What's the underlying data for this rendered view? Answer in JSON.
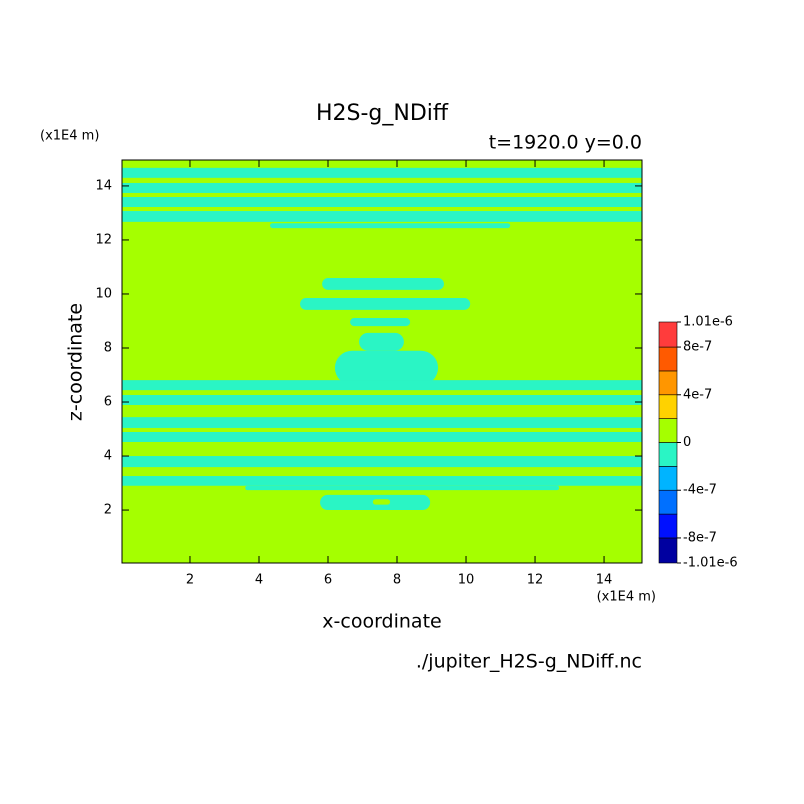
{
  "chart_data": {
    "type": "contour",
    "title": "H2S-g_NDiff",
    "subtitle": "t=1920.0 y=0.0",
    "x_label": "x-coordinate",
    "y_label": "z-coordinate",
    "x_unit": "(x1E4 m)",
    "y_unit": "(x1E4 m)",
    "source": "./jupiter_H2S-g_NDiff.nc",
    "xlim": [
      0.03,
      15.1
    ],
    "ylim": [
      0.04,
      14.96
    ],
    "xticks": [
      2,
      4,
      6,
      8,
      10,
      12,
      14
    ],
    "yticks": [
      2,
      4,
      6,
      8,
      10,
      12,
      14
    ],
    "background": {
      "value": 1e-07,
      "color": "#a5ff00"
    },
    "patches": [
      {
        "x": [
          0.03,
          15.1
        ],
        "z": [
          14.3,
          14.67
        ],
        "value": -1e-07,
        "color": "#2af5c5"
      },
      {
        "x": [
          0.03,
          15.1
        ],
        "z": [
          13.74,
          14.11
        ],
        "value": -1e-07,
        "color": "#2af5c5"
      },
      {
        "x": [
          0.03,
          15.1
        ],
        "z": [
          13.22,
          13.59
        ],
        "value": -1e-07,
        "color": "#2af5c5"
      },
      {
        "x": [
          0.03,
          15.1
        ],
        "z": [
          12.67,
          13.07
        ],
        "value": -1e-07,
        "color": "#2af5c5"
      },
      {
        "x": [
          4.32,
          11.28
        ],
        "z": [
          12.44,
          12.62
        ],
        "value": -1e-07,
        "color": "#2af5c5"
      },
      {
        "x": [
          5.83,
          9.36
        ],
        "z": [
          10.15,
          10.59
        ],
        "value": -1e-07,
        "color": "#2af5c5"
      },
      {
        "x": [
          5.19,
          10.12
        ],
        "z": [
          9.41,
          9.85
        ],
        "value": -1e-07,
        "color": "#2af5c5"
      },
      {
        "x": [
          6.64,
          8.38
        ],
        "z": [
          8.81,
          9.11
        ],
        "value": -1e-07,
        "color": "#2af5c5"
      },
      {
        "x": [
          6.9,
          8.2
        ],
        "z": [
          7.9,
          8.56
        ],
        "value": -1e-07,
        "color": "#2af5c5"
      },
      {
        "x": [
          6.2,
          9.19
        ],
        "z": [
          6.63,
          7.9
        ],
        "value": -1e-07,
        "color": "#2af5c5"
      },
      {
        "x": [
          0.03,
          15.1
        ],
        "z": [
          6.44,
          6.81
        ],
        "value": -1e-07,
        "color": "#2af5c5"
      },
      {
        "x": [
          0.03,
          15.1
        ],
        "z": [
          5.89,
          6.26
        ],
        "value": -1e-07,
        "color": "#2af5c5"
      },
      {
        "x": [
          0.03,
          15.1
        ],
        "z": [
          5.04,
          5.44
        ],
        "value": -1e-07,
        "color": "#2af5c5"
      },
      {
        "x": [
          0.03,
          15.1
        ],
        "z": [
          4.52,
          4.89
        ],
        "value": -1e-07,
        "color": "#2af5c5"
      },
      {
        "x": [
          0.03,
          15.1
        ],
        "z": [
          3.59,
          4.0
        ],
        "value": -1e-07,
        "color": "#2af5c5"
      },
      {
        "x": [
          0.03,
          15.1
        ],
        "z": [
          2.9,
          3.26
        ],
        "value": -1e-07,
        "color": "#2af5c5"
      },
      {
        "x": [
          3.6,
          12.7
        ],
        "z": [
          2.74,
          2.9
        ],
        "value": -1e-07,
        "color": "#2af5c5"
      },
      {
        "x": [
          5.77,
          8.96
        ],
        "z": [
          2.0,
          2.56
        ],
        "value": -1e-07,
        "color": "#2af5c5"
      },
      {
        "x": [
          6.4,
          8.7
        ],
        "z": [
          5.6,
          5.8
        ],
        "value": 1e-07,
        "color": "#a5ff00"
      },
      {
        "x": [
          6.0,
          9.0
        ],
        "z": [
          4.95,
          5.04
        ],
        "value": 1e-07,
        "color": "#a5ff00"
      },
      {
        "x": [
          6.9,
          8.1
        ],
        "z": [
          4.25,
          4.45
        ],
        "value": 1e-07,
        "color": "#a5ff00"
      },
      {
        "x": [
          6.3,
          8.8
        ],
        "z": [
          3.3,
          3.5
        ],
        "value": 1e-07,
        "color": "#a5ff00"
      },
      {
        "x": [
          7.3,
          7.8
        ],
        "z": [
          2.2,
          2.4
        ],
        "value": 1e-07,
        "color": "#a5ff00"
      }
    ],
    "colorbar": {
      "levels": [
        -1.01e-06,
        -8e-07,
        -6e-07,
        -4e-07,
        -2e-07,
        0,
        2e-07,
        4e-07,
        6e-07,
        8e-07,
        1.01e-06
      ],
      "colors": [
        "#0000a0",
        "#0010ff",
        "#0070ff",
        "#00b4ff",
        "#2af5c5",
        "#a5ff00",
        "#ffd200",
        "#ff9600",
        "#ff5a00",
        "#ff3c3c"
      ],
      "ticks": [
        {
          "value": 1.01e-06,
          "label": "1.01e-6"
        },
        {
          "value": 8e-07,
          "label": "8e-7"
        },
        {
          "value": 4e-07,
          "label": "4e-7"
        },
        0,
        {
          "value": -4e-07,
          "label": "-4e-7"
        },
        {
          "value": -8e-07,
          "label": "-8e-7"
        },
        {
          "value": -1.01e-06,
          "label": "-1.01e-6"
        }
      ]
    }
  }
}
